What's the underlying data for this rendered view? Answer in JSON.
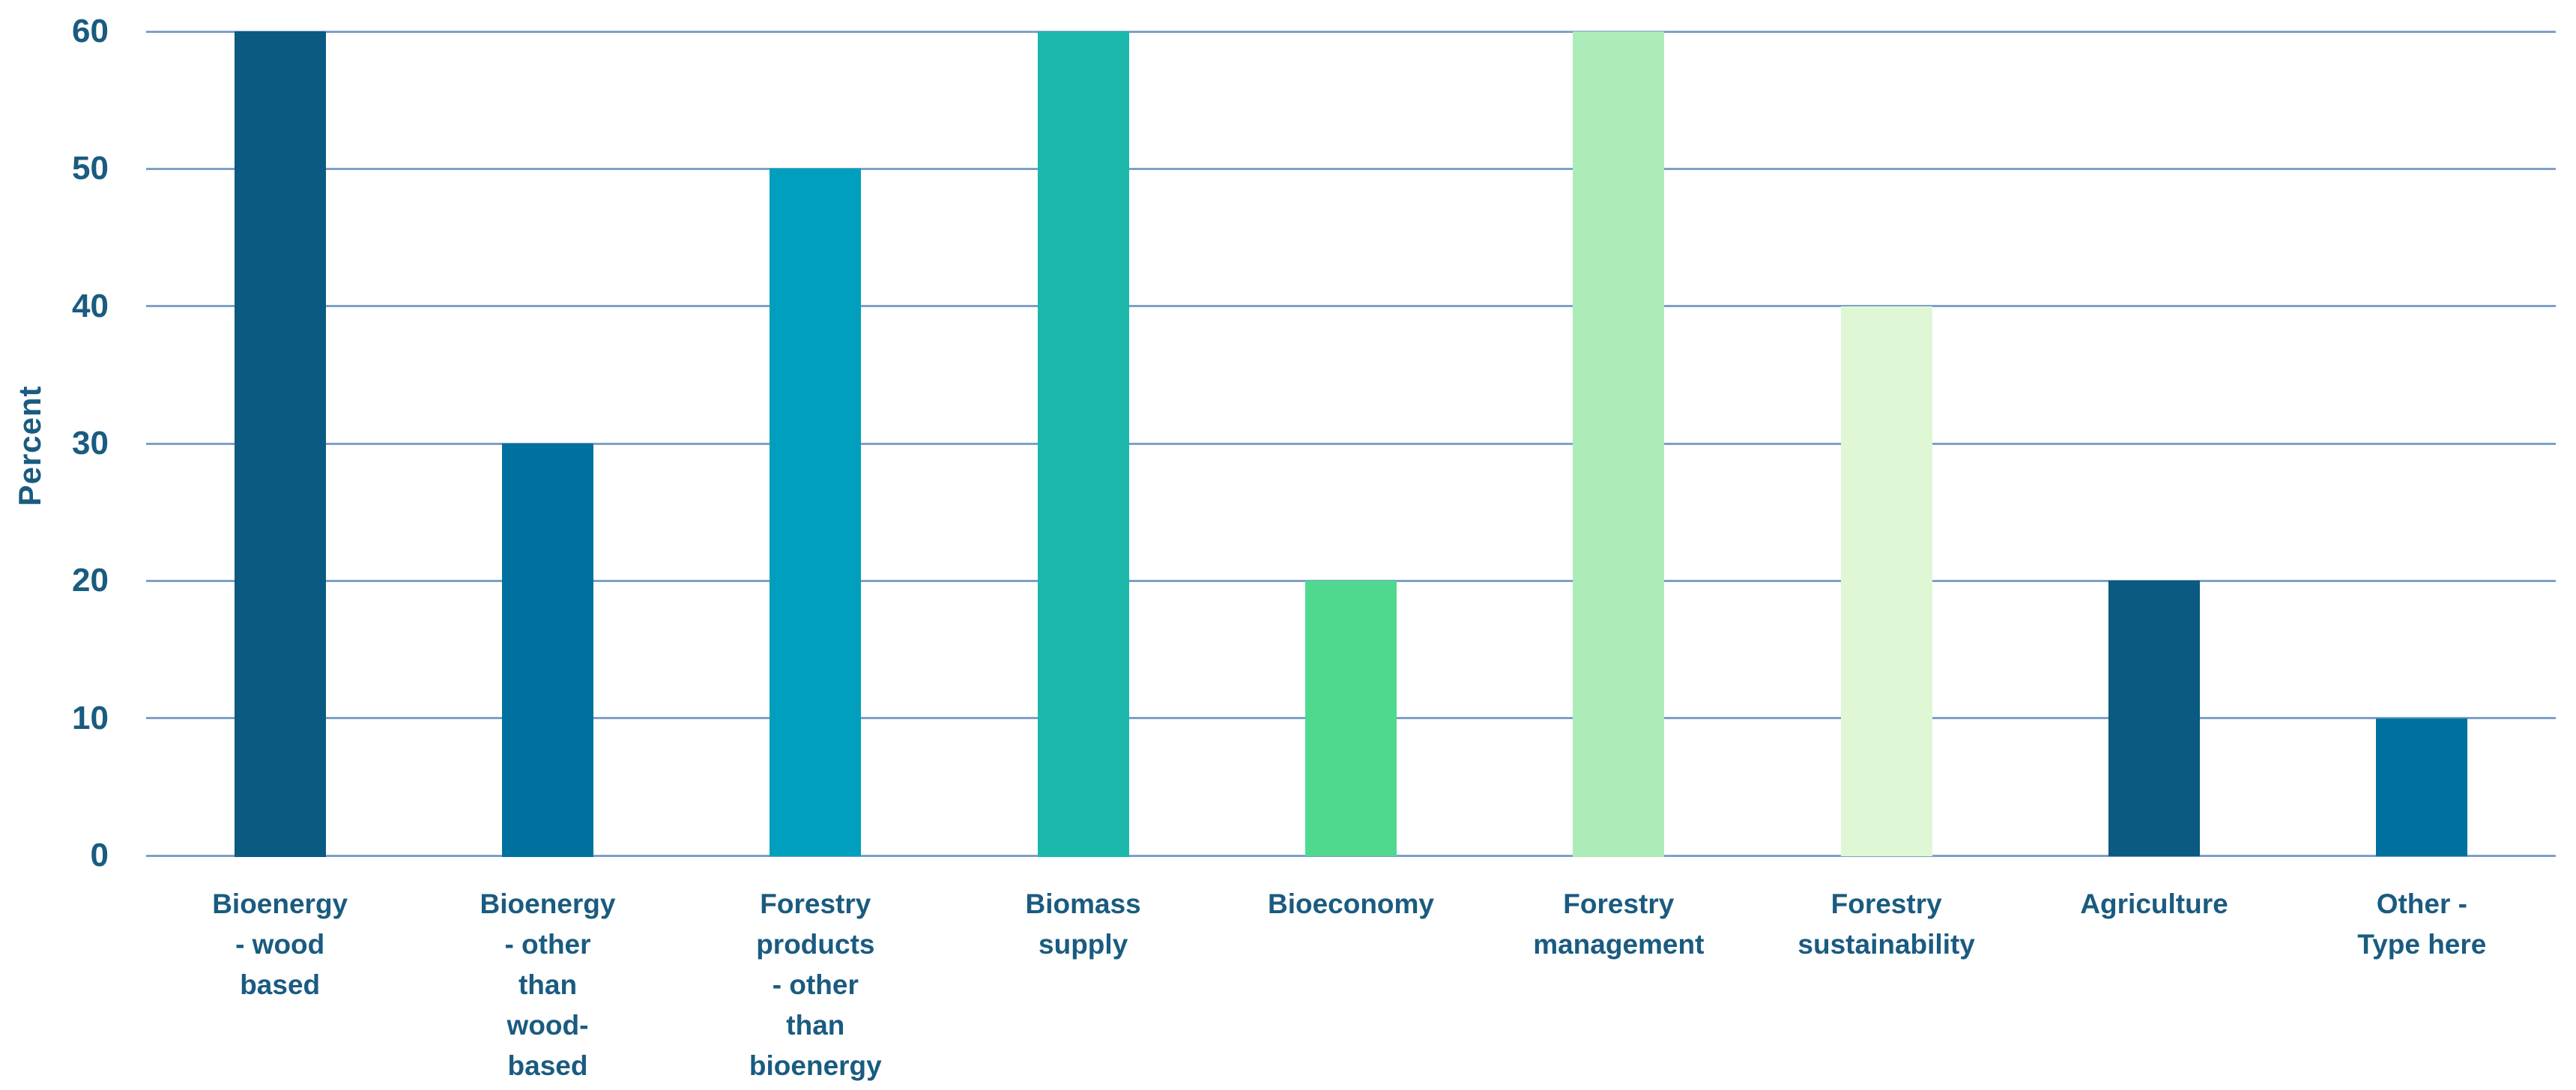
{
  "chart_data": {
    "type": "bar",
    "title": "",
    "xlabel": "",
    "ylabel": "Percent",
    "ylim": [
      0,
      60
    ],
    "yticks": [
      0,
      10,
      20,
      30,
      40,
      50,
      60
    ],
    "grid": "horizontal",
    "legend": "none",
    "categories": [
      "Bioenergy - wood based",
      "Bioenergy - other than wood- based",
      "Forestry products - other than bioenergy",
      "Biomass supply",
      "Bioeconomy",
      "Forestry management",
      "Forestry sustainability",
      "Agriculture",
      "Other - Type here"
    ],
    "category_display_lines": [
      [
        "Bioenergy",
        "- wood",
        "based"
      ],
      [
        "Bioenergy",
        "- other",
        "than",
        "wood-",
        "based"
      ],
      [
        "Forestry",
        "products",
        "- other",
        "than",
        "bioenergy"
      ],
      [
        "Biomass",
        "supply"
      ],
      [
        "Bioeconomy"
      ],
      [
        "Forestry",
        "management"
      ],
      [
        "Forestry",
        "sustainability"
      ],
      [
        "Agriculture"
      ],
      [
        "Other -",
        "Type here"
      ]
    ],
    "values": [
      60,
      30,
      50,
      60,
      20,
      60,
      40,
      20,
      10
    ],
    "bar_colors": [
      "#0A5A82",
      "#00719E",
      "#009FBE",
      "#1BB8AB",
      "#4FD98F",
      "#ABECB8",
      "#E0F7D6",
      "#0A5A82",
      "#00719E"
    ],
    "colors": {
      "gridline": "#7EA0C8",
      "text": "#1A5B80",
      "background": "#FFFFFF"
    }
  }
}
